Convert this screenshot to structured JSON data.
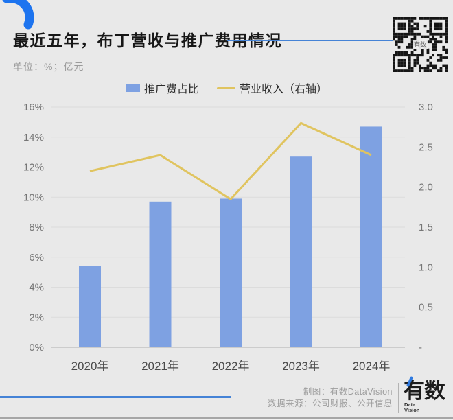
{
  "header": {
    "title": "最近五年，布丁营收与推广费用情况",
    "unit_label": "单位：%；亿元"
  },
  "legend": [
    {
      "label": "推广费占比",
      "type": "bar",
      "color": "#7ea1e2"
    },
    {
      "label": "营业收入（右轴）",
      "type": "line",
      "color": "#e0c45f"
    }
  ],
  "chart_data": {
    "type": "combo",
    "categories": [
      "2020年",
      "2021年",
      "2022年",
      "2023年",
      "2024年"
    ],
    "series": [
      {
        "name": "推广费占比",
        "type": "bar",
        "axis": "left",
        "unit": "%",
        "color": "#7ea1e2",
        "values": [
          5.4,
          9.7,
          9.9,
          12.7,
          14.7
        ]
      },
      {
        "name": "营业收入（右轴）",
        "type": "line",
        "axis": "right",
        "unit": "亿元",
        "color": "#e0c45f",
        "values": [
          2.2,
          2.4,
          1.85,
          2.8,
          2.4
        ]
      }
    ],
    "left_axis": {
      "min": 0,
      "max": 16,
      "tick_labels": [
        "0%",
        "2%",
        "4%",
        "6%",
        "8%",
        "10%",
        "12%",
        "14%",
        "16%"
      ]
    },
    "right_axis": {
      "min": 0,
      "max": 3,
      "tick_labels": [
        "-",
        "0.5",
        "1.0",
        "1.5",
        "2.0",
        "2.5",
        "3.0"
      ]
    },
    "grid": true,
    "legend_position": "top"
  },
  "qr": {
    "center_label": "有数"
  },
  "footer": {
    "credit": "制图：有数DataVision",
    "source": "数据来源：公司财报、公开信息",
    "logo": {
      "main": "有数",
      "sub_top": "Data",
      "sub_bottom": "Vision"
    }
  },
  "colors": {
    "background": "#e9e9e9",
    "bar": "#7ea1e2",
    "line": "#e0c45f",
    "accent_blue": "#4583d6",
    "arc_blue": "#1d74ef",
    "gridline": "#dcdcdc",
    "axis_baseline": "#c3c3c3",
    "tick_text": "#767676",
    "category_text": "#4a4a4a"
  }
}
